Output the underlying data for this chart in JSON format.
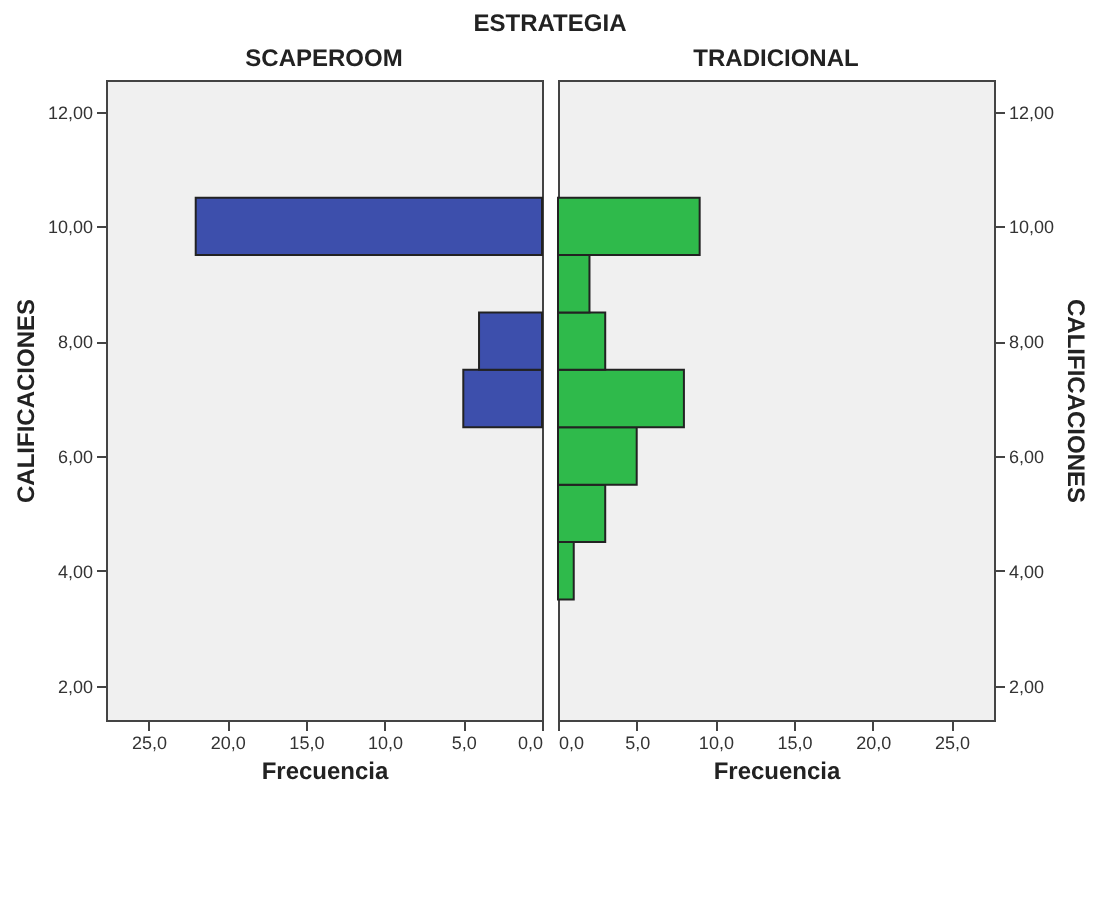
{
  "chart_data": [
    {
      "type": "histogram",
      "orientation": "horizontal",
      "title": "SCAPEROOM",
      "annotations": [
        "ESTRATEGIA"
      ],
      "xlabel": "Frecuencia",
      "ylabel": "CALIFICACIONES",
      "bins": [
        3.5,
        4.5,
        5.5,
        6.5,
        7.5,
        8.5,
        9.5,
        10.5
      ],
      "values": [
        0,
        0,
        0,
        5,
        4,
        0,
        22
      ],
      "color": "#3d4fac",
      "xlim": [
        27.7,
        0
      ],
      "ylim": [
        1.4,
        12.55
      ],
      "xticks": [
        {
          "value": 25,
          "label": "25,0"
        },
        {
          "value": 20,
          "label": "20,0"
        },
        {
          "value": 15,
          "label": "15,0"
        },
        {
          "value": 10,
          "label": "10,0"
        },
        {
          "value": 5,
          "label": "5,0"
        },
        {
          "value": 0,
          "label": "0,0"
        }
      ],
      "yticks": [
        {
          "value": 2,
          "label": "2,00"
        },
        {
          "value": 4,
          "label": "4,00"
        },
        {
          "value": 6,
          "label": "6,00"
        },
        {
          "value": 8,
          "label": "8,00"
        },
        {
          "value": 10,
          "label": "10,00"
        },
        {
          "value": 12,
          "label": "12,00"
        }
      ],
      "grid": false
    },
    {
      "type": "histogram",
      "orientation": "horizontal",
      "title": "TRADICIONAL",
      "xlabel": "Frecuencia",
      "ylabel": "CALIFICACIONES",
      "bins": [
        3.5,
        4.5,
        5.5,
        6.5,
        7.5,
        8.5,
        9.5,
        10.5
      ],
      "values": [
        1,
        3,
        5,
        8,
        3,
        2,
        9
      ],
      "color": "#2fba4b",
      "xlim": [
        0,
        27.7
      ],
      "ylim": [
        1.4,
        12.55
      ],
      "xticks": [
        {
          "value": 0,
          "label": "0,0"
        },
        {
          "value": 5,
          "label": "5,0"
        },
        {
          "value": 10,
          "label": "10,0"
        },
        {
          "value": 15,
          "label": "15,0"
        },
        {
          "value": 20,
          "label": "20,0"
        },
        {
          "value": 25,
          "label": "25,0"
        }
      ],
      "yticks": [
        {
          "value": 2,
          "label": "2,00"
        },
        {
          "value": 4,
          "label": "4,00"
        },
        {
          "value": 6,
          "label": "6,00"
        },
        {
          "value": 8,
          "label": "8,00"
        },
        {
          "value": 10,
          "label": "10,00"
        },
        {
          "value": 12,
          "label": "12,00"
        }
      ],
      "grid": false
    }
  ]
}
